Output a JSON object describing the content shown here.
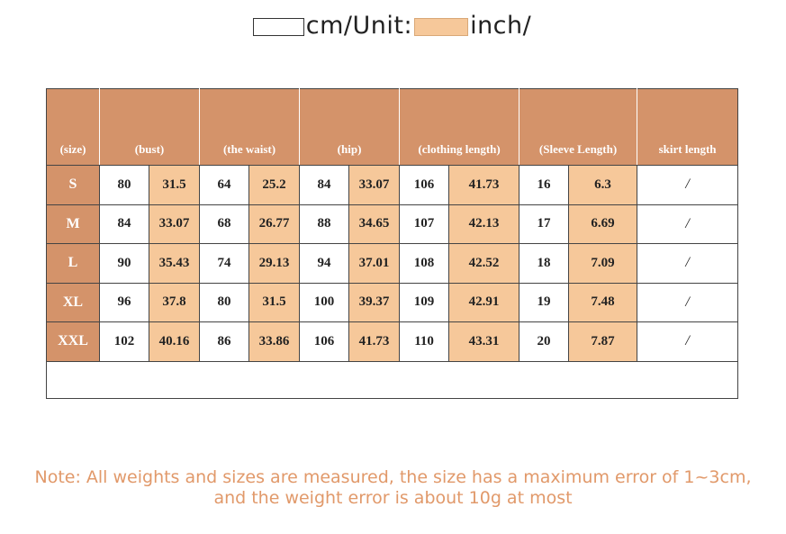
{
  "legend": {
    "cm_text": "cm/Unit:",
    "inch_text": "inch/",
    "colors": {
      "cm_box": "#ffffff",
      "inch_box": "#f6c89a"
    }
  },
  "table": {
    "headers": [
      "(size)",
      "(bust)",
      "(the waist)",
      "(hip)",
      "(clothing length)",
      "(Sleeve Length)",
      "skirt length"
    ],
    "rows": [
      {
        "size": "S",
        "bust_cm": "80",
        "bust_in": "31.5",
        "waist_cm": "64",
        "waist_in": "25.2",
        "hip_cm": "84",
        "hip_in": "33.07",
        "length_cm": "106",
        "length_in": "41.73",
        "sleeve_cm": "16",
        "sleeve_in": "6.3",
        "skirt": "/"
      },
      {
        "size": "M",
        "bust_cm": "84",
        "bust_in": "33.07",
        "waist_cm": "68",
        "waist_in": "26.77",
        "hip_cm": "88",
        "hip_in": "34.65",
        "length_cm": "107",
        "length_in": "42.13",
        "sleeve_cm": "17",
        "sleeve_in": "6.69",
        "skirt": "/"
      },
      {
        "size": "L",
        "bust_cm": "90",
        "bust_in": "35.43",
        "waist_cm": "74",
        "waist_in": "29.13",
        "hip_cm": "94",
        "hip_in": "37.01",
        "length_cm": "108",
        "length_in": "42.52",
        "sleeve_cm": "18",
        "sleeve_in": "7.09",
        "skirt": "/"
      },
      {
        "size": "XL",
        "bust_cm": "96",
        "bust_in": "37.8",
        "waist_cm": "80",
        "waist_in": "31.5",
        "hip_cm": "100",
        "hip_in": "39.37",
        "length_cm": "109",
        "length_in": "42.91",
        "sleeve_cm": "19",
        "sleeve_in": "7.48",
        "skirt": "/"
      },
      {
        "size": "XXL",
        "bust_cm": "102",
        "bust_in": "40.16",
        "waist_cm": "86",
        "waist_in": "33.86",
        "hip_cm": "106",
        "hip_in": "41.73",
        "length_cm": "110",
        "length_in": "43.31",
        "sleeve_cm": "20",
        "sleeve_in": "7.87",
        "skirt": "/"
      }
    ],
    "colors": {
      "header_bg": "#d4936a",
      "inch_bg": "#f6c89a"
    }
  },
  "note": {
    "line1": "Note: All weights and sizes are measured, the size has a maximum error of 1~3cm,",
    "line2": "and the weight error is about 10g at most",
    "color": "#e1996a"
  }
}
